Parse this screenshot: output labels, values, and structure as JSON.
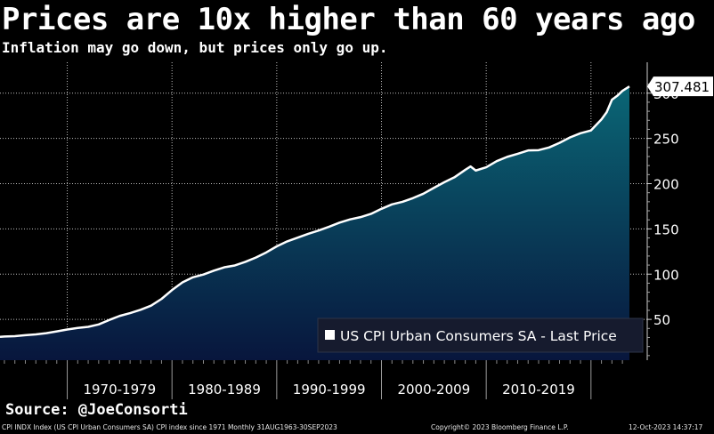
{
  "header": {
    "title": "Prices are 10x higher than 60 years ago",
    "subtitle": "Inflation may go down, but prices only go up."
  },
  "source_text": "Source: @JoeConsorti",
  "footer": {
    "left": "CPI INDX Index (US CPI Urban Consumers SA) CPI index since 1971  Monthly 31AUG1963-30SEP2023",
    "center": "Copyright© 2023 Bloomberg Finance L.P.",
    "right": "12-Oct-2023 14:37:17"
  },
  "colors": {
    "background": "#000000",
    "line": "#ffffff",
    "area_top": "#0a6675",
    "area_bottom": "#08163d",
    "grid": "#bdbdbd",
    "legend_bg": "#161b2e"
  },
  "chart_data": {
    "type": "area",
    "title": "",
    "xlabel": "",
    "ylabel": "",
    "x_range": [
      1963.58,
      2023.67
    ],
    "ylim": [
      0,
      320
    ],
    "grid": true,
    "legend_placement": "bottom-right",
    "y_ticks": [
      50,
      100,
      150,
      200,
      250,
      300
    ],
    "x_categories": [
      "1970-1979",
      "1980-1989",
      "1990-1999",
      "2000-2009",
      "2010-2019"
    ],
    "last_price_label": "307.481",
    "series": [
      {
        "name": "US CPI Urban Consumers SA - Last Price",
        "x": [
          1963.58,
          1964,
          1965,
          1966,
          1967,
          1968,
          1969,
          1970,
          1971,
          1972,
          1973,
          1974,
          1975,
          1976,
          1977,
          1978,
          1979,
          1980,
          1981,
          1982,
          1983,
          1984,
          1985,
          1986,
          1987,
          1988,
          1989,
          1990,
          1991,
          1992,
          1993,
          1994,
          1995,
          1996,
          1997,
          1998,
          1999,
          2000,
          2001,
          2002,
          2003,
          2004,
          2005,
          2006,
          2007,
          2008,
          2008.5,
          2009,
          2010,
          2011,
          2012,
          2013,
          2014,
          2015,
          2016,
          2017,
          2018,
          2019,
          2020,
          2021,
          2021.5,
          2022,
          2022.5,
          2023,
          2023.67
        ],
        "y": [
          30.7,
          31.1,
          31.5,
          32.5,
          33.4,
          34.8,
          36.7,
          38.8,
          40.5,
          41.8,
          44.4,
          49.3,
          53.8,
          56.9,
          60.6,
          65.2,
          72.6,
          82.4,
          90.9,
          96.5,
          99.6,
          103.9,
          107.6,
          109.6,
          113.6,
          118.3,
          124.0,
          130.7,
          136.2,
          140.3,
          144.5,
          148.2,
          152.4,
          156.9,
          160.5,
          163.0,
          166.6,
          172.2,
          177.1,
          179.9,
          184.0,
          188.9,
          195.3,
          201.6,
          207.3,
          215.3,
          219.0,
          214.5,
          218.1,
          224.9,
          229.6,
          233.0,
          236.7,
          237.0,
          240.0,
          245.1,
          251.1,
          255.7,
          258.8,
          271.0,
          279.0,
          292.7,
          297.0,
          302.5,
          307.481
        ]
      }
    ]
  }
}
